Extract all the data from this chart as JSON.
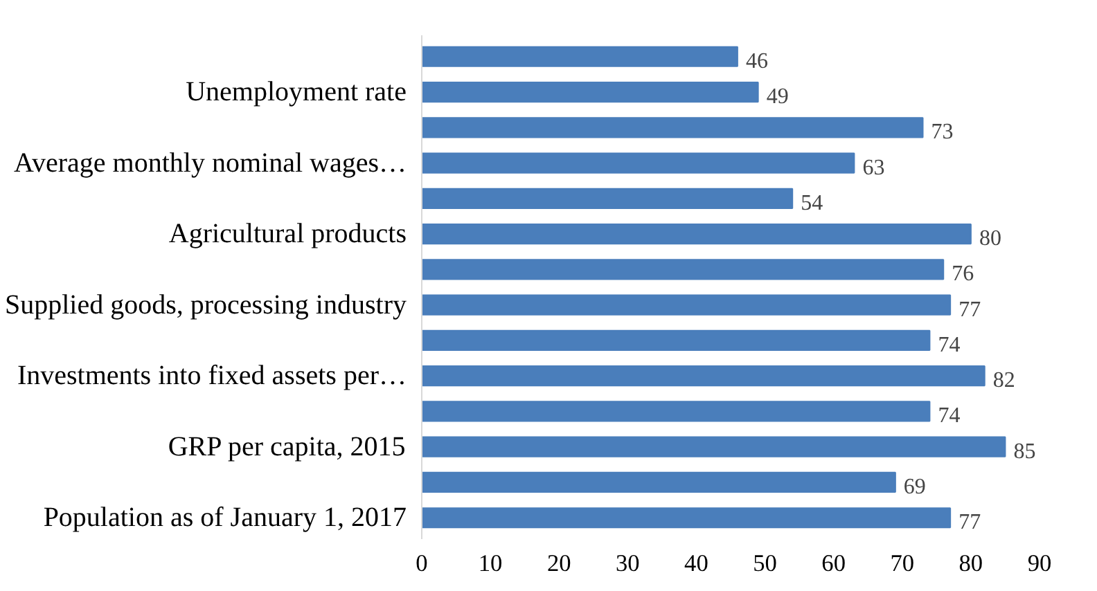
{
  "chart_data": {
    "type": "bar",
    "orientation": "horizontal",
    "categories": [
      null,
      "Unemployment rate",
      null,
      "Average monthly nominal wages…",
      null,
      "Agricultural products",
      null,
      "Supplied goods, processing industry",
      null,
      "Investments into fixed assets per…",
      null,
      "GRP per capita, 2015",
      null,
      "Population as of January 1, 2017"
    ],
    "values": [
      46,
      49,
      73,
      63,
      54,
      80,
      76,
      77,
      74,
      82,
      74,
      85,
      69,
      77
    ],
    "color": "#4a7ebb",
    "xlim": [
      0,
      90
    ],
    "xticks": [
      0,
      10,
      20,
      30,
      40,
      50,
      60,
      70,
      80,
      90
    ],
    "grid": false,
    "data_labels": true
  }
}
